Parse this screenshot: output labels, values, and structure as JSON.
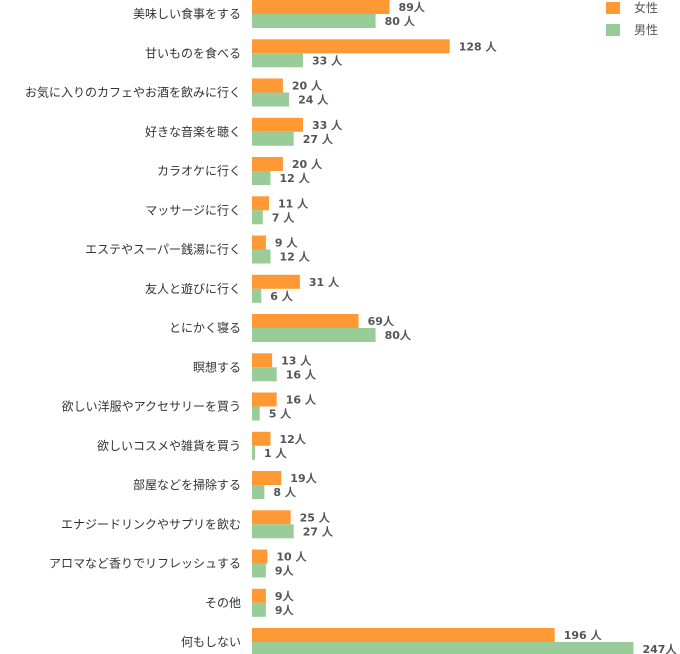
{
  "chart_data": {
    "type": "bar",
    "orientation": "horizontal",
    "categories": [
      "美味しい食事をする",
      "甘いものを食べる",
      "お気に入りのカフェやお酒を飲みに行く",
      "好きな音楽を聴く",
      "カラオケに行く",
      "マッサージに行く",
      "エステやスーパー銭湯に行く",
      "友人と遊びに行く",
      "とにかく寝る",
      "瞑想する",
      "欲しい洋服やアクセサリーを買う",
      "欲しいコスメや雑貨を買う",
      "部屋などを掃除する",
      "エナジードリンクやサプリを飲む",
      "アロマなど香りでリフレッシュする",
      "その他",
      "何もしない"
    ],
    "series": [
      {
        "name": "女性",
        "color": "#FF9933",
        "values": [
          89,
          128,
          20,
          33,
          20,
          11,
          9,
          31,
          69,
          13,
          16,
          12,
          19,
          25,
          10,
          9,
          196
        ],
        "labels": [
          "89人",
          "128 人",
          "20 人",
          "33 人",
          "20 人",
          "11 人",
          "9 人",
          "31 人",
          "69人",
          "13 人",
          "16 人",
          "12人",
          "19人",
          "25 人",
          "10 人",
          "9人",
          "196 人"
        ]
      },
      {
        "name": "男性",
        "color": "#99CC99",
        "values": [
          80,
          33,
          24,
          27,
          12,
          7,
          12,
          6,
          80,
          16,
          5,
          1,
          8,
          27,
          9,
          9,
          247
        ],
        "labels": [
          "80 人",
          "33 人",
          "24 人",
          "27 人",
          "12 人",
          "7 人",
          "12 人",
          "6 人",
          "80人",
          "16 人",
          "5 人",
          "1 人",
          "8 人",
          "27 人",
          "9人",
          "9人",
          "247人"
        ]
      }
    ],
    "legend_position": "top-right",
    "grid": false
  }
}
